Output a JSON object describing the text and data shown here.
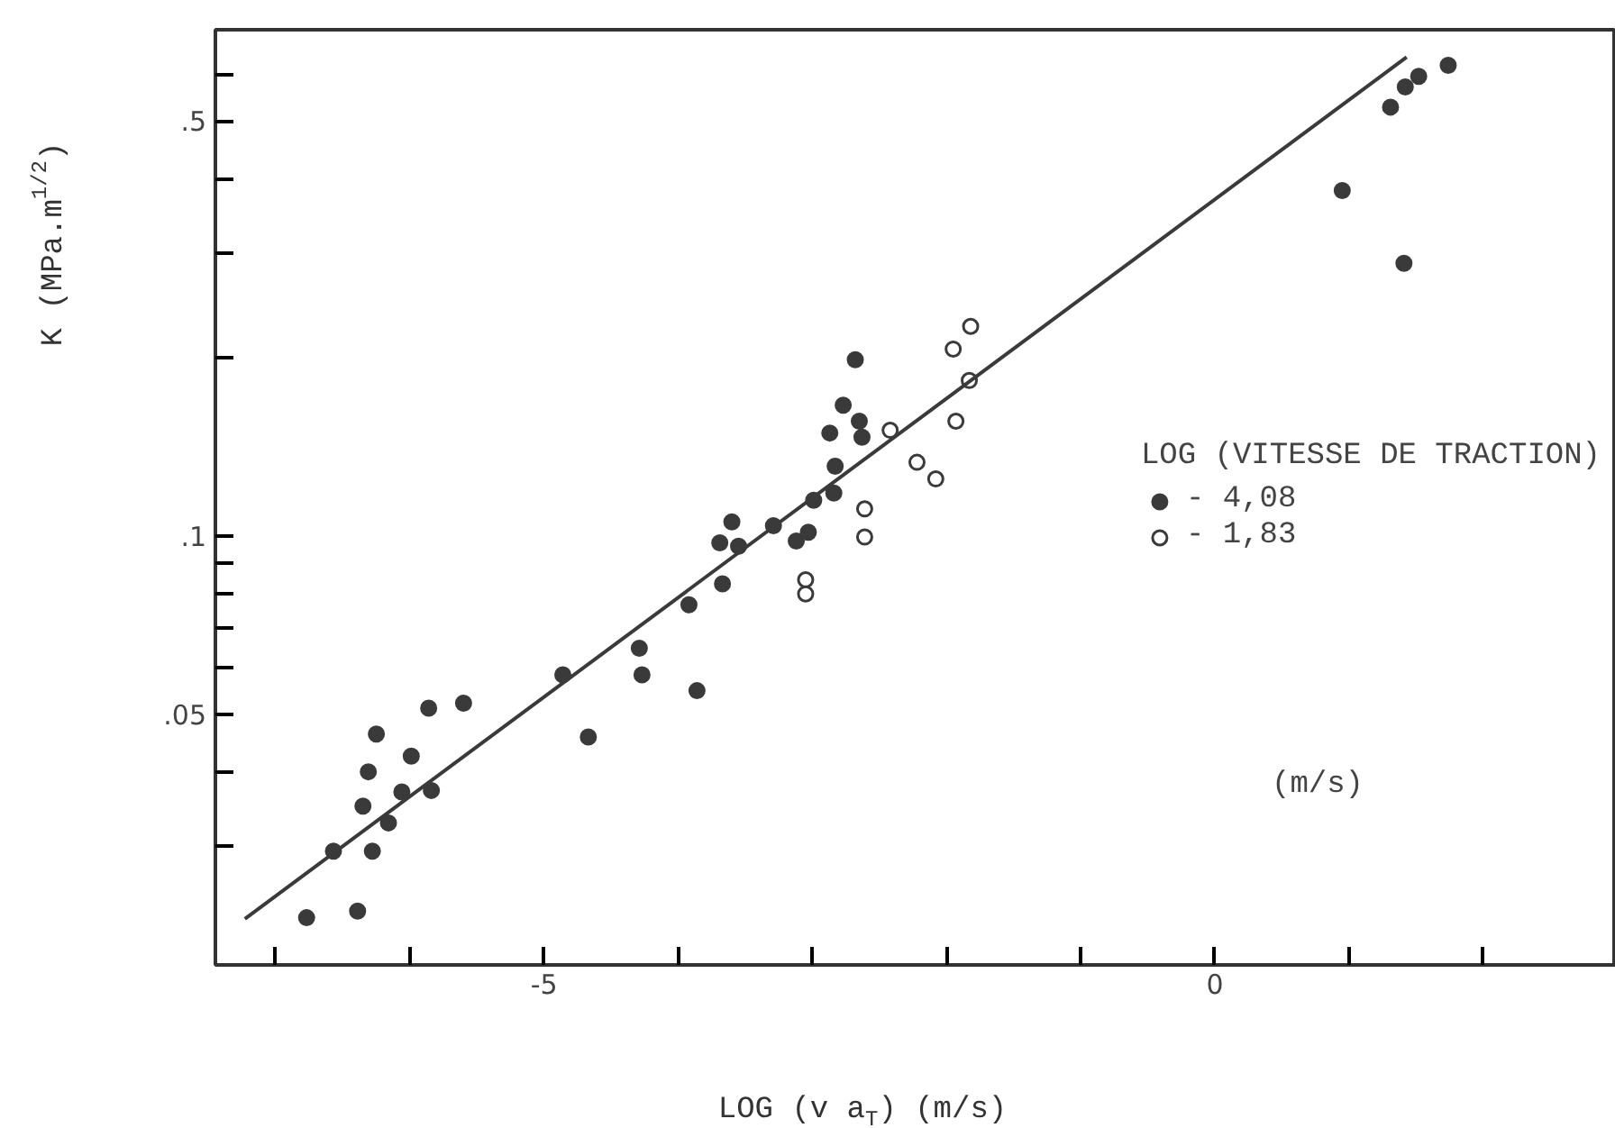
{
  "chart_data": {
    "type": "scatter",
    "xlabel": "LOG (v a$_{T}$) (m/s)",
    "ylabel": "K (MPa.m$^{1/2}$)",
    "legend_title": "LOG (VITESSE DE TRACTION)",
    "log": "y",
    "grid": false,
    "legend": "right",
    "xlim": [
      -7.45,
      2.99
    ],
    "ylim": [
      0.0189,
      0.713
    ],
    "xticks": [
      {
        "value": -7,
        "label": null
      },
      {
        "value": -6,
        "label": null
      },
      -5,
      {
        "value": -4,
        "label": null
      },
      {
        "value": -3,
        "label": null
      },
      {
        "value": -2,
        "label": null
      },
      {
        "value": -1,
        "label": null
      },
      0,
      {
        "value": 1,
        "label": null
      },
      {
        "value": 2,
        "label": null
      }
    ],
    "yticks": [
      {
        "value": 0.6,
        "label": null
      },
      {
        "value": 0.5,
        "label": ".5"
      },
      {
        "value": 0.4,
        "label": null
      },
      {
        "value": 0.3,
        "label": null
      },
      {
        "value": 0.2,
        "label": null
      },
      {
        "value": 0.1,
        "label": ".1"
      },
      {
        "value": 0.09,
        "label": null
      },
      {
        "value": 0.08,
        "label": null
      },
      {
        "value": 0.07,
        "label": null
      },
      {
        "value": 0.06,
        "label": null
      },
      {
        "value": 0.05,
        "label": ".05"
      },
      {
        "value": 0.04,
        "label": null
      },
      {
        "value": 0.03,
        "label": null
      }
    ],
    "annotations": [
      "(m/s)"
    ],
    "series": [
      {
        "name": "- 4,08",
        "marker": "circle",
        "color": "#3a3a3a",
        "x": [
          -6.77,
          -6.57,
          -6.39,
          -6.35,
          -6.31,
          -6.25,
          -6.28,
          -6.16,
          -6.06,
          -5.99,
          -5.86,
          -5.84,
          -5.6,
          -4.86,
          -4.67,
          -4.29,
          -4.27,
          -3.92,
          -3.86,
          -3.69,
          -3.67,
          -3.6,
          -3.55,
          -3.29,
          -3.12,
          -3.03,
          -2.99,
          -2.84,
          -2.83,
          -2.87,
          -2.77,
          -2.68,
          -2.65,
          -2.63,
          0.95,
          1.41,
          1.31,
          1.42,
          1.52,
          1.74
        ],
        "values": [
          0.0227,
          0.0294,
          0.0233,
          0.035,
          0.04,
          0.0463,
          0.0294,
          0.0328,
          0.037,
          0.0425,
          0.0512,
          0.0372,
          0.0522,
          0.0583,
          0.0458,
          0.0646,
          0.0583,
          0.0765,
          0.0548,
          0.0973,
          0.083,
          0.1055,
          0.096,
          0.104,
          0.098,
          0.1014,
          0.1148,
          0.118,
          0.131,
          0.149,
          0.166,
          0.198,
          0.156,
          0.1466,
          0.382,
          0.288,
          0.528,
          0.571,
          0.595,
          0.621
        ]
      },
      {
        "name": "- 1,83",
        "marker": "circle",
        "color": "#3a3a3a",
        "x": [
          -3.05,
          -3.05,
          -2.61,
          -2.61,
          -2.42,
          -2.22,
          -2.08,
          -1.93,
          -1.83,
          -1.95,
          -1.82
        ],
        "values": [
          0.0843,
          0.0798,
          0.111,
          0.0995,
          0.1506,
          0.133,
          0.1247,
          0.156,
          0.1827,
          0.2064,
          0.2254
        ]
      },
      {
        "type": "line",
        "color": "#3a3a3a",
        "x": [
          -7.23,
          1.43
        ],
        "values": [
          0.0226,
          0.641
        ]
      }
    ]
  }
}
